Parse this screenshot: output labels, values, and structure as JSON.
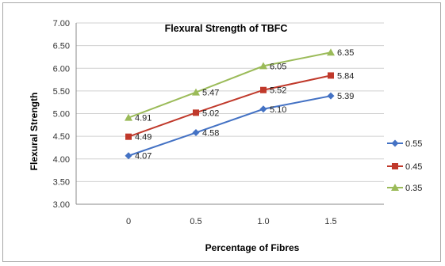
{
  "chart_data": {
    "type": "line",
    "title": "Flexural Strength of TBFC",
    "xlabel": "Percentage of Fibres",
    "ylabel": "Flexural Strength",
    "categories": [
      "0",
      "0.5",
      "1.0",
      "1.5"
    ],
    "ylim": [
      3.0,
      7.0
    ],
    "yticks": [
      "3.00",
      "3.50",
      "4.00",
      "4.50",
      "5.00",
      "5.50",
      "6.00",
      "6.50",
      "7.00"
    ],
    "grid": true,
    "legend_position": "right",
    "series": [
      {
        "name": "0.55",
        "color": "#4472C4",
        "marker": "diamond",
        "values": [
          4.07,
          4.58,
          5.1,
          5.39
        ],
        "labels": [
          "4.07",
          "4.58",
          "5.10",
          "5.39"
        ]
      },
      {
        "name": "0.45",
        "color": "#C0392B",
        "marker": "square",
        "values": [
          4.49,
          5.02,
          5.52,
          5.84
        ],
        "labels": [
          "4.49",
          "5.02",
          "5.52",
          "5.84"
        ]
      },
      {
        "name": "0.35",
        "color": "#9BBB59",
        "marker": "triangle",
        "values": [
          4.91,
          5.47,
          6.05,
          6.35
        ],
        "labels": [
          "4.91",
          "5.47",
          "6.05",
          "6.35"
        ]
      }
    ]
  }
}
